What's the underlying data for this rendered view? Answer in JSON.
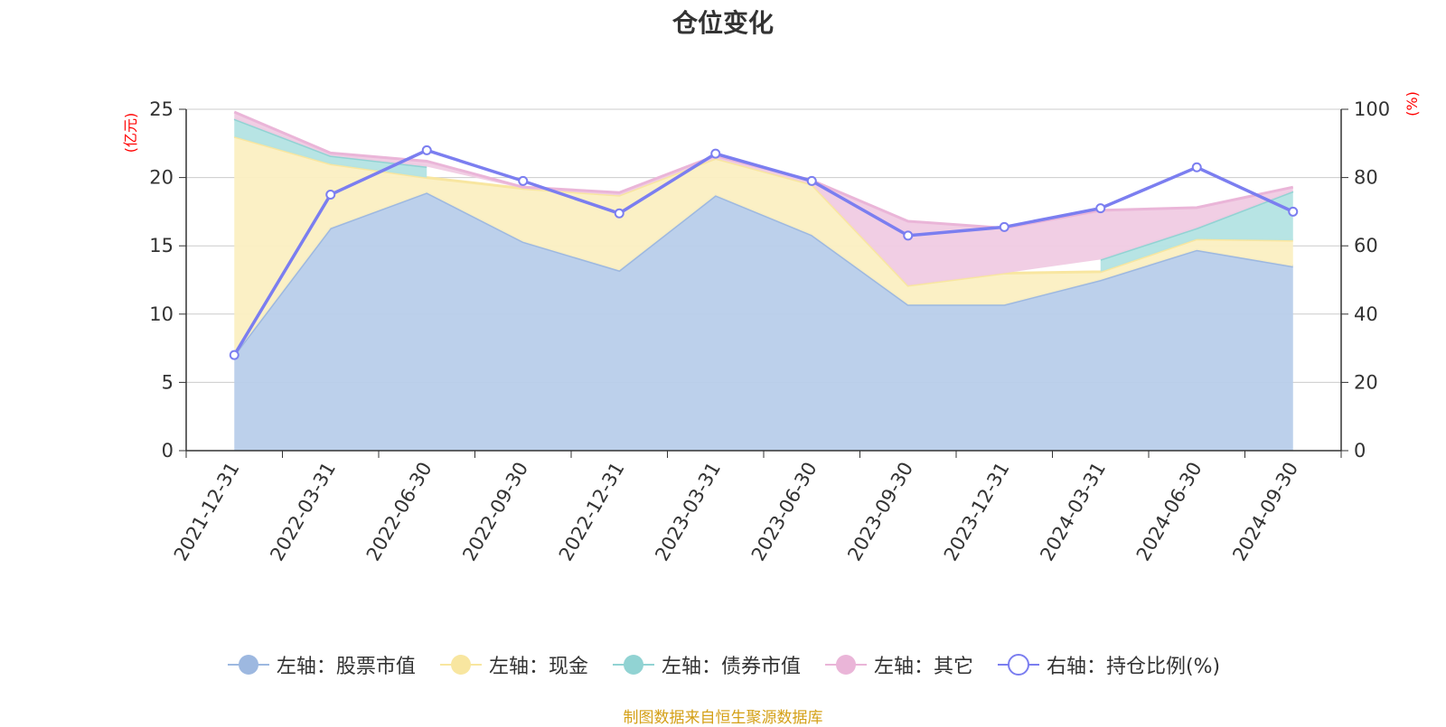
{
  "chart_data": {
    "type": "area",
    "title": "仓位变化",
    "categories": [
      "2021-12-31",
      "2022-03-31",
      "2022-06-30",
      "2022-09-30",
      "2022-12-31",
      "2023-03-31",
      "2023-06-30",
      "2023-09-30",
      "2023-12-31",
      "2024-03-31",
      "2024-06-30",
      "2024-09-30"
    ],
    "y_left": {
      "unit": "(亿元)",
      "ticks": [
        "0",
        "5",
        "10",
        "15",
        "20",
        "25"
      ],
      "min": 0,
      "max": 25
    },
    "y_right": {
      "unit": "(%)",
      "ticks": [
        "0",
        "20",
        "40",
        "60",
        "80",
        "100"
      ],
      "min": 0,
      "max": 100
    },
    "stack_series": [
      {
        "name": "左轴：股票市值",
        "color": "#9db8e0",
        "fill": "#b8cdea",
        "values": [
          7.0,
          16.3,
          18.9,
          15.3,
          13.2,
          18.7,
          15.8,
          10.7,
          10.7,
          12.5,
          14.7,
          13.5
        ]
      },
      {
        "name": "左轴：现金",
        "color": "#f8e6a0",
        "fill": "#fbefc2",
        "values": [
          16.0,
          4.7,
          1.1,
          3.9,
          5.5,
          2.7,
          3.7,
          1.4,
          2.3,
          0.6,
          0.8,
          1.9
        ]
      },
      {
        "name": "左轴：债券市值",
        "color": "#91d3d3",
        "fill": "#b3e3e3",
        "values": [
          1.3,
          0.6,
          0.8,
          null,
          null,
          null,
          null,
          null,
          null,
          0.9,
          0.8,
          3.6
        ]
      },
      {
        "name": "左轴：其它",
        "color": "#eab5d8",
        "fill": "#f0cbe3",
        "values": [
          0.5,
          0.2,
          0.4,
          0.1,
          0.2,
          0.2,
          0.3,
          4.7,
          3.3,
          3.6,
          1.5,
          0.3
        ]
      }
    ],
    "line_series": {
      "name": "右轴：持仓比例(%)",
      "color": "#7b7ef0",
      "values": [
        28.0,
        75.0,
        88.0,
        79.0,
        69.5,
        87.0,
        79.0,
        63.0,
        65.5,
        71.0,
        83.0,
        70.0
      ]
    },
    "source": "制图数据来自恒生聚源数据库"
  }
}
